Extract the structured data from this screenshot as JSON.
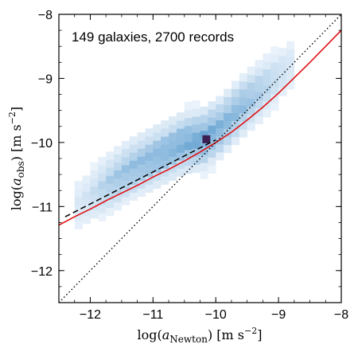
{
  "chart_data": {
    "type": "heatmap",
    "annotation": "149 galaxies, 2700 records",
    "xlabel": {
      "prefix": "log(",
      "sym": "a",
      "sub": "Newton",
      "mid": ") [m s",
      "sup": "−2",
      "end": "]"
    },
    "ylabel": {
      "prefix": "log(",
      "sym": "a",
      "sub": "obs",
      "mid": ") [m s",
      "sup": "−2",
      "end": "]"
    },
    "xlim": [
      -12.5,
      -8
    ],
    "ylim": [
      -12.5,
      -8
    ],
    "xticks": [
      -12,
      -11,
      -10,
      -9,
      -8
    ],
    "yticks": [
      -12,
      -11,
      -10,
      -9,
      -8
    ],
    "xtick_labels": [
      "−12",
      "−11",
      "−10",
      "−9",
      "−8"
    ],
    "ytick_labels": [
      "−12",
      "−11",
      "−10",
      "−9",
      "−8"
    ],
    "grid": false,
    "colors": {
      "fit_line": "#e01010",
      "dashed_line": "#000000",
      "dotted_line": "#000000",
      "heatmap_scale": [
        "#f2f7fd",
        "#2a7fc0"
      ],
      "peak_bin": "#3b1f52"
    },
    "heatmap": {
      "cmap": "Blues",
      "note": "2D histogram of observed vs baryonic acceleration; density concentrated along the red curve",
      "ridge_points": [
        {
          "x": -12.3,
          "y": -11.05,
          "density": 0.1
        },
        {
          "x": -12.0,
          "y": -10.85,
          "density": 0.18
        },
        {
          "x": -11.7,
          "y": -10.65,
          "density": 0.35
        },
        {
          "x": -11.4,
          "y": -10.45,
          "density": 0.45
        },
        {
          "x": -11.1,
          "y": -10.3,
          "density": 0.5
        },
        {
          "x": -10.8,
          "y": -10.15,
          "density": 0.55
        },
        {
          "x": -10.5,
          "y": -10.0,
          "density": 0.6
        },
        {
          "x": -10.2,
          "y": -9.95,
          "density": 0.65
        },
        {
          "x": -9.9,
          "y": -9.75,
          "density": 0.55
        },
        {
          "x": -9.6,
          "y": -9.45,
          "density": 0.5
        },
        {
          "x": -9.3,
          "y": -9.2,
          "density": 0.35
        },
        {
          "x": -9.0,
          "y": -8.95,
          "density": 0.2
        },
        {
          "x": -8.7,
          "y": -8.7,
          "density": 0.1
        }
      ],
      "peak_bin": {
        "x": -10.15,
        "y": -9.95
      }
    },
    "series": [
      {
        "style": "solid",
        "kind": "RAR fit: g_obs = g_bar / (1 - exp(-sqrt(g_bar/g†))), g† = 1.2e-10 m s^-2",
        "x": [
          -12.5,
          -12.25,
          -12.0,
          -11.75,
          -11.5,
          -11.25,
          -11.0,
          -10.75,
          -10.5,
          -10.25,
          -10.0,
          -9.75,
          -9.5,
          -9.25,
          -9.0,
          -8.75,
          -8.5,
          -8.25,
          -8.0
        ],
        "y": [
          -11.29,
          -11.16,
          -11.04,
          -10.91,
          -10.79,
          -10.67,
          -10.54,
          -10.42,
          -10.29,
          -10.15,
          -10.0,
          -9.84,
          -9.65,
          -9.45,
          -9.23,
          -8.99,
          -8.75,
          -8.5,
          -8.25
        ]
      },
      {
        "style": "dashed",
        "kind": "low-acceleration asymptote: log g_obs = 0.5 log g_bar + 0.5 log g†",
        "x": [
          -12.4,
          -10.0
        ],
        "y": [
          -11.16,
          -9.96
        ]
      },
      {
        "style": "dotted",
        "kind": "1:1 line",
        "x": [
          -12.5,
          -8.0
        ],
        "y": [
          -12.5,
          -8.0
        ]
      }
    ]
  }
}
